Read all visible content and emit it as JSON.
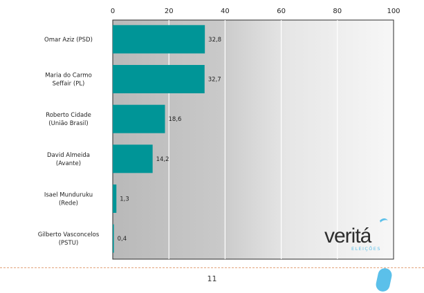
{
  "chart_data": {
    "type": "bar",
    "orientation": "horizontal",
    "categories": [
      "Omar Aziz (PSD)",
      "Maria do Carmo Seffair (PL)",
      "Roberto Cidade (União Brasil)",
      "David Almeida (Avante)",
      "Isael Munduruku (Rede)",
      "Gilberto Vasconcelos (PSTU)"
    ],
    "category_lines": [
      [
        "Omar Aziz (PSD)"
      ],
      [
        "Maria do Carmo",
        "Seffair (PL)"
      ],
      [
        "Roberto Cidade",
        "(União Brasil)"
      ],
      [
        "David Almeida",
        "(Avante)"
      ],
      [
        "Isael Munduruku",
        "(Rede)"
      ],
      [
        "Gilberto Vasconcelos",
        "(PSTU)"
      ]
    ],
    "values": [
      32.8,
      32.7,
      18.6,
      14.2,
      1.3,
      0.4
    ],
    "value_labels": [
      "32,8",
      "32,7",
      "18,6",
      "14,2",
      "1,3",
      "0,4"
    ],
    "xlim": [
      0,
      100
    ],
    "xticks": [
      0,
      20,
      40,
      60,
      80,
      100
    ],
    "xaxis_position": "top",
    "grid": true,
    "bar_color": "#009597"
  },
  "logo": {
    "name": "verita-logo",
    "text": "veritá",
    "subtext": "ELEIÇÕES"
  },
  "footer": {
    "page_number": "11"
  }
}
